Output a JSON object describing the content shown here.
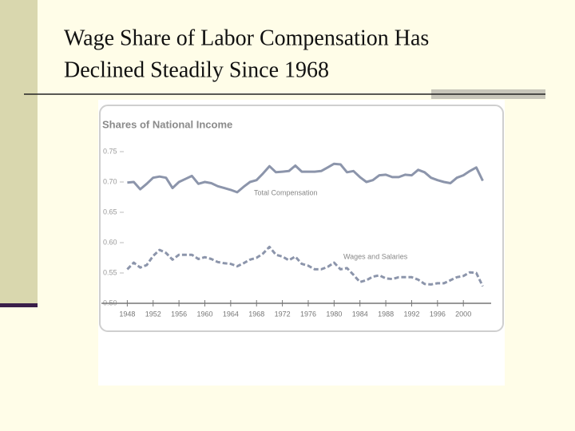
{
  "slide_title": [
    "Wage Share of Labor Compensation Has",
    "Declined Steadily Since 1968"
  ],
  "chart_data": {
    "type": "line",
    "title": "Shares of National Income",
    "x": [
      1948,
      1949,
      1950,
      1951,
      1952,
      1953,
      1954,
      1955,
      1956,
      1957,
      1958,
      1959,
      1960,
      1961,
      1962,
      1963,
      1964,
      1965,
      1966,
      1967,
      1968,
      1969,
      1970,
      1971,
      1972,
      1973,
      1974,
      1975,
      1976,
      1977,
      1978,
      1979,
      1980,
      1981,
      1982,
      1983,
      1984,
      1985,
      1986,
      1987,
      1988,
      1989,
      1990,
      1991,
      1992,
      1993,
      1994,
      1995,
      1996,
      1997,
      1998,
      1999,
      2000,
      2001,
      2002,
      2003
    ],
    "series": [
      {
        "name": "Total Compensation",
        "color": "#8c95ab",
        "style": "solid",
        "values": [
          0.699,
          0.7,
          0.688,
          0.697,
          0.707,
          0.709,
          0.707,
          0.69,
          0.7,
          0.705,
          0.71,
          0.697,
          0.7,
          0.698,
          0.693,
          0.69,
          0.687,
          0.683,
          0.692,
          0.7,
          0.703,
          0.714,
          0.726,
          0.716,
          0.717,
          0.718,
          0.727,
          0.717,
          0.717,
          0.717,
          0.718,
          0.724,
          0.73,
          0.729,
          0.716,
          0.718,
          0.708,
          0.7,
          0.703,
          0.711,
          0.712,
          0.708,
          0.708,
          0.712,
          0.711,
          0.72,
          0.716,
          0.707,
          0.703,
          0.7,
          0.698,
          0.707,
          0.711,
          0.718,
          0.724,
          0.702
        ]
      },
      {
        "name": "Wages and Salaries",
        "color": "#8c95ab",
        "style": "dashed",
        "values": [
          0.556,
          0.567,
          0.559,
          0.563,
          0.578,
          0.588,
          0.583,
          0.572,
          0.58,
          0.58,
          0.58,
          0.573,
          0.576,
          0.573,
          0.568,
          0.566,
          0.565,
          0.561,
          0.566,
          0.572,
          0.575,
          0.582,
          0.593,
          0.58,
          0.577,
          0.571,
          0.577,
          0.565,
          0.562,
          0.556,
          0.556,
          0.56,
          0.567,
          0.556,
          0.558,
          0.547,
          0.535,
          0.538,
          0.544,
          0.546,
          0.541,
          0.54,
          0.543,
          0.543,
          0.543,
          0.539,
          0.532,
          0.531,
          0.533,
          0.533,
          0.538,
          0.543,
          0.545,
          0.551,
          0.55,
          0.528
        ]
      }
    ],
    "xlim": [
      1944,
      2004.3
    ],
    "xticks": [
      1948,
      1952,
      1956,
      1960,
      1964,
      1968,
      1972,
      1976,
      1980,
      1984,
      1988,
      1992,
      1996,
      2000
    ],
    "ylim": [
      0.5,
      0.75
    ],
    "yticks": [
      {
        "value": 0.5,
        "label": "0.50"
      },
      0.55,
      {
        "value": 0.6,
        "label": "0.60"
      },
      0.65,
      {
        "value": 0.7,
        "label": "0.70"
      },
      0.75
    ],
    "grid": false
  }
}
